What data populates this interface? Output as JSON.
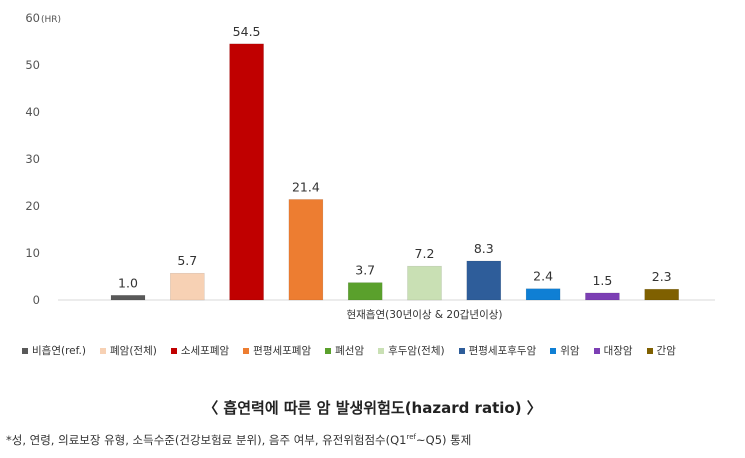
{
  "chart_data": {
    "type": "bar",
    "unit_label": "(HR)",
    "ylim": [
      0,
      60
    ],
    "yticks": [
      0,
      10,
      20,
      30,
      40,
      50,
      60
    ],
    "xlabel": "현재흡연(30년이상 & 20갑년이상)",
    "categories": [
      "비흡연(ref.)",
      "폐암(전체)",
      "소세포폐암",
      "편평세포폐암",
      "폐선암",
      "후두암(전체)",
      "편평세포후두암",
      "위암",
      "대장암",
      "간암"
    ],
    "values": [
      1.0,
      5.7,
      54.5,
      21.4,
      3.7,
      7.2,
      8.3,
      2.4,
      1.5,
      2.3
    ],
    "value_labels": [
      "1.0",
      "5.7",
      "54.5",
      "21.4",
      "3.7",
      "7.2",
      "8.3",
      "2.4",
      "1.5",
      "2.3"
    ],
    "colors": [
      "#595959",
      "#f7d1b4",
      "#c00000",
      "#ed7d31",
      "#5aa02c",
      "#c9e0b4",
      "#2e5d9a",
      "#0f7fd4",
      "#7c3fb4",
      "#7f6000"
    ],
    "grid": false,
    "legend_position": "bottom"
  },
  "caption": "〈 흡연력에 따른 암 발생위험도(hazard ratio) 〉",
  "footnote": {
    "before": "*성, 연령, 의료보장 유형, 소득수준(건강보험료 분위), 음주 여부, 유전위험점수(Q1",
    "sup": "ref",
    "after": "~Q5) 통제"
  }
}
